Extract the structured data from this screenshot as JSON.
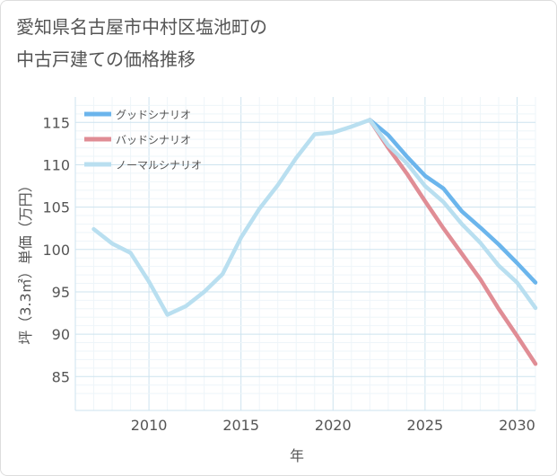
{
  "title_lines": [
    "愛知県名古屋市中村区塩池町の",
    "中古戸建ての価格推移"
  ],
  "chart_data": {
    "type": "line",
    "xlabel": "年",
    "ylabel": "坪（3.3㎡）単価（万円）",
    "xlim": [
      2006,
      2031
    ],
    "ylim": [
      81,
      118
    ],
    "xticks": [
      2010,
      2015,
      2020,
      2025,
      2030
    ],
    "yticks": [
      85,
      90,
      95,
      100,
      105,
      110,
      115
    ],
    "grid": true,
    "legend_position": "top-left",
    "series": [
      {
        "name": "グッドシナリオ",
        "color": "#6bb5ec",
        "x": [
          2022,
          2023,
          2024,
          2025,
          2026,
          2027,
          2028,
          2029,
          2030,
          2031
        ],
        "values": [
          115.3,
          113.5,
          111.0,
          108.7,
          107.2,
          104.5,
          102.6,
          100.6,
          98.4,
          96.1
        ]
      },
      {
        "name": "バッドシナリオ",
        "color": "#e08d95",
        "x": [
          2022,
          2023,
          2024,
          2025,
          2026,
          2027,
          2028,
          2029,
          2030,
          2031
        ],
        "values": [
          115.3,
          112.0,
          109.0,
          105.7,
          102.5,
          99.5,
          96.5,
          93.0,
          89.8,
          86.5
        ]
      },
      {
        "name": "ノーマルシナリオ",
        "color": "#b9dff0",
        "x": [
          2007,
          2008,
          2009,
          2010,
          2011,
          2012,
          2013,
          2014,
          2015,
          2016,
          2017,
          2018,
          2019,
          2020,
          2021,
          2022,
          2023,
          2024,
          2025,
          2026,
          2027,
          2028,
          2029,
          2030,
          2031
        ],
        "values": [
          102.4,
          100.7,
          99.6,
          96.2,
          92.3,
          93.3,
          95.0,
          97.1,
          101.4,
          104.8,
          107.6,
          110.8,
          113.6,
          113.8,
          114.5,
          115.3,
          112.3,
          110.2,
          107.5,
          105.6,
          103.0,
          100.8,
          98.1,
          96.1,
          93.1
        ]
      }
    ]
  }
}
